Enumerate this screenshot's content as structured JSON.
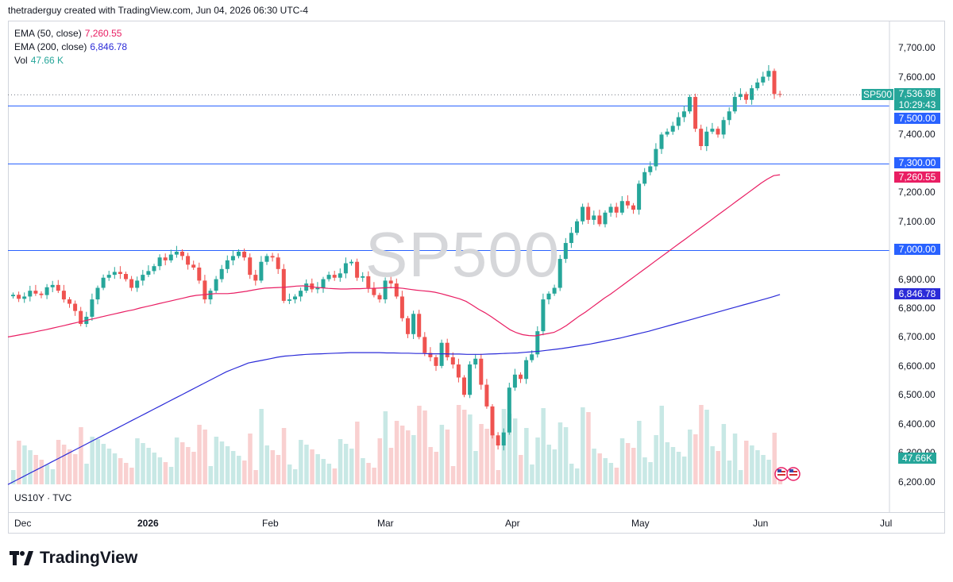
{
  "header": {
    "credit": "thetraderguy created with TradingView.com, Jun 04, 2026 06:30 UTC-4"
  },
  "legend": {
    "ema50": {
      "label": "EMA (50, close)",
      "value": "7,260.55",
      "color": "#e91e63"
    },
    "ema200": {
      "label": "EMA (200, close)",
      "value": "6,846.78",
      "color": "#2b2bd8"
    },
    "vol": {
      "label": "Vol",
      "value": "47.66 K",
      "color": "#26a69a"
    }
  },
  "watermark": "SP500",
  "sub_pane_label": "US10Y · TVC",
  "price_labels": {
    "symbol": "SP500",
    "last": "7,536.98",
    "countdown": "10:29:43",
    "hline_7500": "7,500.00",
    "hline_7300": "7,300.00",
    "ema50": "7,260.55",
    "hline_7000": "7,000.00",
    "ema200": "6,846.78",
    "volume": "47.66K"
  },
  "footer": {
    "brand": "TradingView"
  },
  "colors": {
    "up": "#26a69a",
    "down": "#ef5350",
    "hline": "#2962ff",
    "ema50": "#e91e63",
    "ema200": "#2b2bd8",
    "vol_up": "#c8e8e5",
    "vol_down": "#f9d0d0"
  },
  "chart_data": {
    "type": "candlestick",
    "title": "SP500",
    "y_axis": {
      "range": [
        6150,
        7800
      ],
      "ticks": [
        "7,700.00",
        "7,600.00",
        "7,500.00",
        "7,400.00",
        "7,300.00",
        "7,200.00",
        "7,100.00",
        "7,000.00",
        "6,900.00",
        "6,800.00",
        "6,700.00",
        "6,600.00",
        "6,500.00",
        "6,400.00",
        "6,300.00",
        "6,200.00"
      ]
    },
    "x_axis": {
      "ticks": [
        "Dec",
        "2026",
        "Feb",
        "Mar",
        "Apr",
        "May",
        "Jun",
        "Jul"
      ]
    },
    "horizontal_lines": [
      7500,
      7300,
      7000
    ],
    "last_price": 7536.98,
    "ohlc_close": [
      6846,
      6832,
      6840,
      6860,
      6850,
      6845,
      6872,
      6880,
      6860,
      6830,
      6815,
      6790,
      6745,
      6770,
      6830,
      6870,
      6905,
      6915,
      6925,
      6918,
      6900,
      6870,
      6895,
      6915,
      6928,
      6945,
      6975,
      6965,
      6985,
      6995,
      6980,
      6950,
      6940,
      6895,
      6830,
      6860,
      6900,
      6935,
      6965,
      6980,
      6995,
      6975,
      6915,
      6895,
      6960,
      6980,
      6975,
      6935,
      6825,
      6830,
      6840,
      6860,
      6885,
      6865,
      6870,
      6900,
      6915,
      6905,
      6920,
      6955,
      6960,
      6905,
      6910,
      6870,
      6845,
      6830,
      6895,
      6885,
      6840,
      6765,
      6710,
      6780,
      6700,
      6645,
      6630,
      6600,
      6680,
      6630,
      6605,
      6560,
      6500,
      6605,
      6625,
      6535,
      6460,
      6360,
      6325,
      6370,
      6525,
      6570,
      6555,
      6620,
      6640,
      6720,
      6830,
      6850,
      6870,
      6970,
      7025,
      7060,
      7100,
      7150,
      7105,
      7120,
      7090,
      7130,
      7150,
      7130,
      7170,
      7155,
      7140,
      7230,
      7270,
      7290,
      7350,
      7400,
      7410,
      7430,
      7460,
      7480,
      7530,
      7420,
      7360,
      7410,
      7420,
      7400,
      7450,
      7480,
      7530,
      7540,
      7520,
      7560,
      7580,
      7600,
      7620,
      7540,
      7537
    ],
    "ema50": [
      6700,
      6704,
      6708,
      6712,
      6716,
      6721,
      6725,
      6730,
      6735,
      6740,
      6745,
      6750,
      6755,
      6760,
      6765,
      6770,
      6775,
      6780,
      6785,
      6790,
      6794,
      6800,
      6805,
      6810,
      6815,
      6820,
      6825,
      6830,
      6835,
      6840,
      6844,
      6846,
      6848,
      6850,
      6850,
      6850,
      6852,
      6855,
      6858,
      6862,
      6866,
      6869,
      6870,
      6871,
      6872,
      6874,
      6876,
      6877,
      6875,
      6872,
      6870,
      6868,
      6867,
      6866,
      6866,
      6867,
      6867,
      6868,
      6868,
      6869,
      6870,
      6871,
      6870,
      6868,
      6865,
      6862,
      6860,
      6858,
      6855,
      6850,
      6844,
      6838,
      6832,
      6823,
      6810,
      6796,
      6784,
      6770,
      6755,
      6740,
      6725,
      6715,
      6708,
      6705,
      6704,
      6708,
      6712,
      6716,
      6727,
      6740,
      6756,
      6772,
      6786,
      6802,
      6818,
      6834,
      6848,
      6864,
      6880,
      6896,
      6912,
      6928,
      6944,
      6960,
      6976,
      6992,
      7008,
      7024,
      7040,
      7056,
      7072,
      7088,
      7104,
      7120,
      7136,
      7152,
      7168,
      7184,
      7200,
      7216,
      7232,
      7246,
      7258,
      7261
    ],
    "ema200": [
      6190,
      6203,
      6216,
      6229,
      6242,
      6255,
      6268,
      6281,
      6294,
      6307,
      6320,
      6333,
      6346,
      6359,
      6372,
      6385,
      6398,
      6411,
      6424,
      6437,
      6450,
      6463,
      6476,
      6489,
      6502,
      6515,
      6528,
      6541,
      6554,
      6567,
      6580,
      6590,
      6600,
      6610,
      6615,
      6620,
      6625,
      6630,
      6634,
      6636,
      6638,
      6640,
      6641,
      6642,
      6643,
      6644,
      6645,
      6646,
      6646,
      6646,
      6646,
      6646,
      6645,
      6645,
      6644,
      6644,
      6643,
      6643,
      6642,
      6642,
      6642,
      6641,
      6641,
      6640,
      6640,
      6640,
      6641,
      6642,
      6643,
      6644,
      6645,
      6647,
      6649,
      6651,
      6654,
      6657,
      6660,
      6664,
      6668,
      6672,
      6676,
      6681,
      6686,
      6691,
      6696,
      6702,
      6708,
      6714,
      6720,
      6727,
      6734,
      6741,
      6748,
      6755,
      6762,
      6769,
      6776,
      6783,
      6790,
      6797,
      6804,
      6811,
      6818,
      6825,
      6832,
      6839,
      6847
    ],
    "volume_last": "47.66K"
  }
}
